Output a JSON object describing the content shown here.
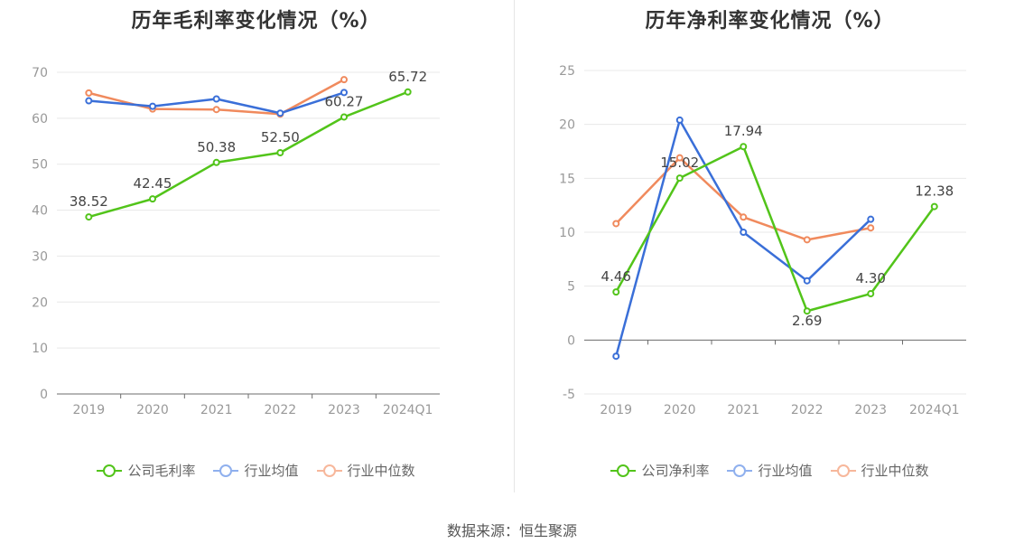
{
  "colors": {
    "company": "#52c41a",
    "industry_avg": "#3a6fd8",
    "industry_median": "#f08a5d",
    "grid": "#e8e8e8",
    "axis": "#999999"
  },
  "source_label": "数据来源：恒生聚源",
  "legend": {
    "company_gross": "公司毛利率",
    "company_net": "公司净利率",
    "industry_avg": "行业均值",
    "industry_median": "行业中位数"
  },
  "chart_data": [
    {
      "type": "line",
      "title": "历年毛利率变化情况（%）",
      "categories": [
        "2019",
        "2020",
        "2021",
        "2022",
        "2023",
        "2024Q1"
      ],
      "yticks": [
        "0",
        "10",
        "20",
        "30",
        "40",
        "50",
        "60",
        "70"
      ],
      "ylim": [
        0,
        70
      ],
      "grid": true,
      "legend_position": "bottom",
      "series": [
        {
          "name": "公司毛利率",
          "values": [
            38.52,
            42.45,
            50.38,
            52.5,
            60.27,
            65.72
          ],
          "labels": [
            "38.52",
            "42.45",
            "50.38",
            "52.50",
            "60.27",
            "65.72"
          ]
        },
        {
          "name": "行业均值",
          "values": [
            63.8,
            62.6,
            64.2,
            61.1,
            65.6,
            null
          ]
        },
        {
          "name": "行业中位数",
          "values": [
            65.5,
            62.0,
            61.9,
            60.9,
            68.4,
            null
          ]
        }
      ]
    },
    {
      "type": "line",
      "title": "历年净利率变化情况（%）",
      "categories": [
        "2019",
        "2020",
        "2021",
        "2022",
        "2023",
        "2024Q1"
      ],
      "yticks": [
        "-5",
        "0",
        "5",
        "10",
        "15",
        "20",
        "25"
      ],
      "ylim": [
        -5,
        25
      ],
      "grid": true,
      "legend_position": "bottom",
      "series": [
        {
          "name": "公司净利率",
          "values": [
            4.46,
            15.02,
            17.94,
            2.69,
            4.3,
            12.38
          ],
          "labels": [
            "4.46",
            "15.02",
            "17.94",
            "2.69",
            "4.30",
            "12.38"
          ]
        },
        {
          "name": "行业均值",
          "values": [
            -1.5,
            20.4,
            10.0,
            5.5,
            11.2,
            null
          ]
        },
        {
          "name": "行业中位数",
          "values": [
            10.8,
            16.9,
            11.4,
            9.3,
            10.4,
            null
          ]
        }
      ]
    }
  ]
}
